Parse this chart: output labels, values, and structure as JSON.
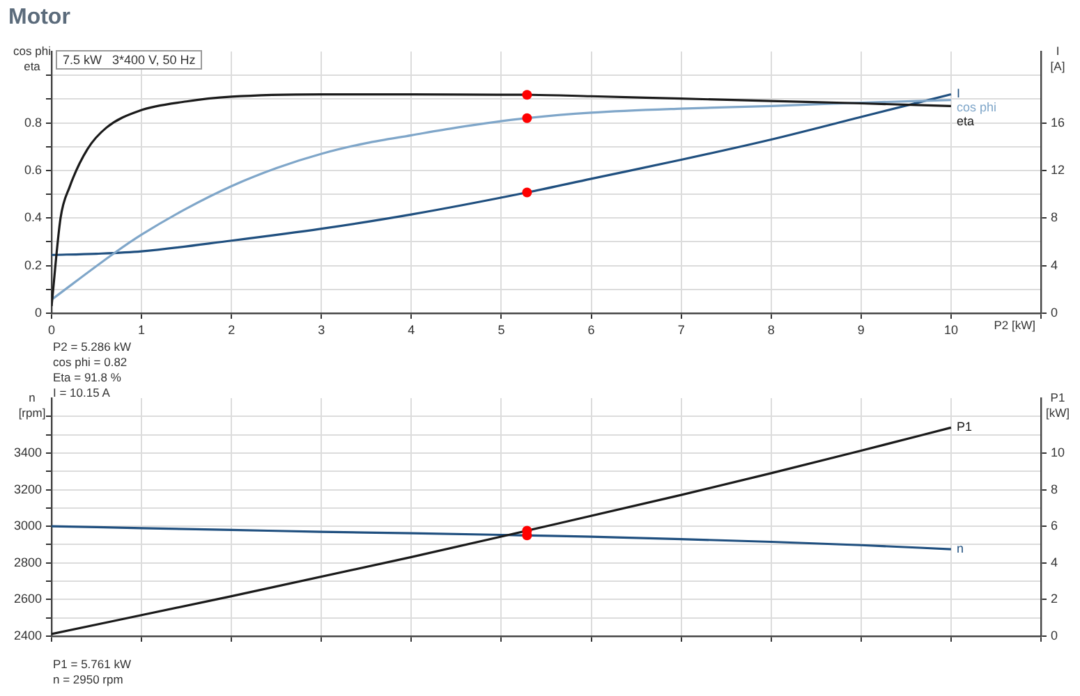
{
  "chart_data": [
    {
      "type": "line",
      "title": "Motor",
      "subtitle": "7.5 kW   3*400 V, 50 Hz",
      "xlabel": "P2 [kW]",
      "ylabel": "cos phi\neta",
      "y2label": "I\n[A]",
      "xlim": [
        0,
        11
      ],
      "xticks": [
        0,
        1,
        2,
        3,
        4,
        5,
        6,
        7,
        8,
        9,
        10,
        {
          "value": 11,
          "label": null
        }
      ],
      "ylim": [
        0,
        1.1
      ],
      "yticks": [
        0,
        {
          "value": 0.1,
          "label": null
        },
        0.2,
        {
          "value": 0.3,
          "label": null
        },
        0.4,
        {
          "value": 0.5,
          "label": null
        },
        0.6,
        {
          "value": 0.7,
          "label": null
        },
        0.8,
        {
          "value": 0.9,
          "label": null
        },
        {
          "value": 1.0,
          "label": null
        }
      ],
      "y2lim": [
        0,
        22
      ],
      "y2ticks": [
        0,
        4,
        8,
        12,
        16
      ],
      "grid": true,
      "legend": false,
      "marker": "none",
      "series": [
        {
          "name": "eta",
          "color": "#1a1a1a",
          "x": [
            0,
            0.1,
            0.2,
            0.4,
            0.61,
            0.97,
            1.5,
            2,
            3,
            4,
            5,
            5.286,
            6,
            7,
            8,
            9,
            10
          ],
          "values": [
            0.03,
            0.4,
            0.53,
            0.69,
            0.78,
            0.85,
            0.89,
            0.91,
            0.92,
            0.92,
            0.918,
            0.918,
            0.912,
            0.902,
            0.892,
            0.882,
            0.871
          ]
        },
        {
          "name": "cos phi",
          "color": "#7fa6c9",
          "x": [
            0,
            0.71,
            1,
            1.5,
            2,
            2.5,
            3,
            3.5,
            4,
            4.5,
            5.286,
            6,
            7,
            8,
            9,
            10
          ],
          "values": [
            0.057,
            0.256,
            0.33,
            0.44,
            0.534,
            0.61,
            0.67,
            0.715,
            0.748,
            0.78,
            0.82,
            0.843,
            0.86,
            0.871,
            0.885,
            0.896
          ]
        },
        {
          "name": "I",
          "color": "#1f4f7f",
          "axis": "y2",
          "x": [
            0,
            0.5,
            1,
            2,
            3,
            4,
            5.286,
            6,
            7,
            8,
            9,
            10
          ],
          "values": [
            4.9,
            5.0,
            5.2,
            6.1,
            7.1,
            8.3,
            10.15,
            11.3,
            12.9,
            14.6,
            16.5,
            18.4
          ]
        },
        {
          "type": "scatter",
          "marker": "circle",
          "color": "#ff0000",
          "x": [
            5.286,
            5.286
          ],
          "values": [
            0.918,
            0.82
          ]
        },
        {
          "type": "scatter",
          "marker": "circle",
          "color": "#ff0000",
          "axis": "y2",
          "x": [
            5.286
          ],
          "values": [
            10.15
          ]
        }
      ],
      "annotations": [
        "P2 = 5.286 kW",
        "cos phi = 0.82",
        "Eta = 91.8 %",
        "I = 10.15 A"
      ]
    },
    {
      "type": "line",
      "ylabel": "n\n[rpm]",
      "y2label": "P1\n[kW]",
      "xlim": [
        0,
        11
      ],
      "xticks": [
        0,
        1,
        2,
        3,
        4,
        5,
        6,
        7,
        8,
        9,
        10,
        11
      ],
      "ylim": [
        2400,
        3700
      ],
      "yticks": [
        2400,
        {
          "value": 2500,
          "label": null
        },
        2600,
        {
          "value": 2700,
          "label": null
        },
        2800,
        {
          "value": 2900,
          "label": null
        },
        3000,
        {
          "value": 3100,
          "label": null
        },
        3200,
        {
          "value": 3300,
          "label": null
        },
        3400,
        {
          "value": 3500,
          "label": null
        },
        {
          "value": 3600,
          "label": null
        }
      ],
      "y2lim": [
        0,
        13
      ],
      "y2ticks": [
        0,
        2,
        4,
        6,
        8,
        10
      ],
      "grid": true,
      "legend": false,
      "marker": "none",
      "tick_labels": "y",
      "series": [
        {
          "name": "P1",
          "color": "#1a1a1a",
          "axis": "y2",
          "x": [
            0,
            2,
            4,
            5.286,
            7,
            8,
            9,
            10
          ],
          "values": [
            0.12,
            2.18,
            4.32,
            5.761,
            7.71,
            8.9,
            10.13,
            11.39
          ]
        },
        {
          "name": "n",
          "color": "#1f4f7f",
          "x": [
            0,
            1,
            2,
            3,
            4,
            5,
            5.286,
            6,
            7,
            8,
            9,
            10
          ],
          "values": [
            3000,
            2990,
            2980,
            2970,
            2962,
            2953,
            2950,
            2943,
            2930,
            2915,
            2897,
            2875
          ]
        },
        {
          "type": "scatter",
          "marker": "circle",
          "color": "#ff0000",
          "x": [
            5.286
          ],
          "values": [
            2950
          ]
        },
        {
          "type": "scatter",
          "marker": "circle",
          "color": "#ff0000",
          "axis": "y2",
          "x": [
            5.286
          ],
          "values": [
            5.761
          ]
        }
      ],
      "annotations": [
        "P1 = 5.761 kW",
        "n = 2950 rpm"
      ]
    }
  ]
}
